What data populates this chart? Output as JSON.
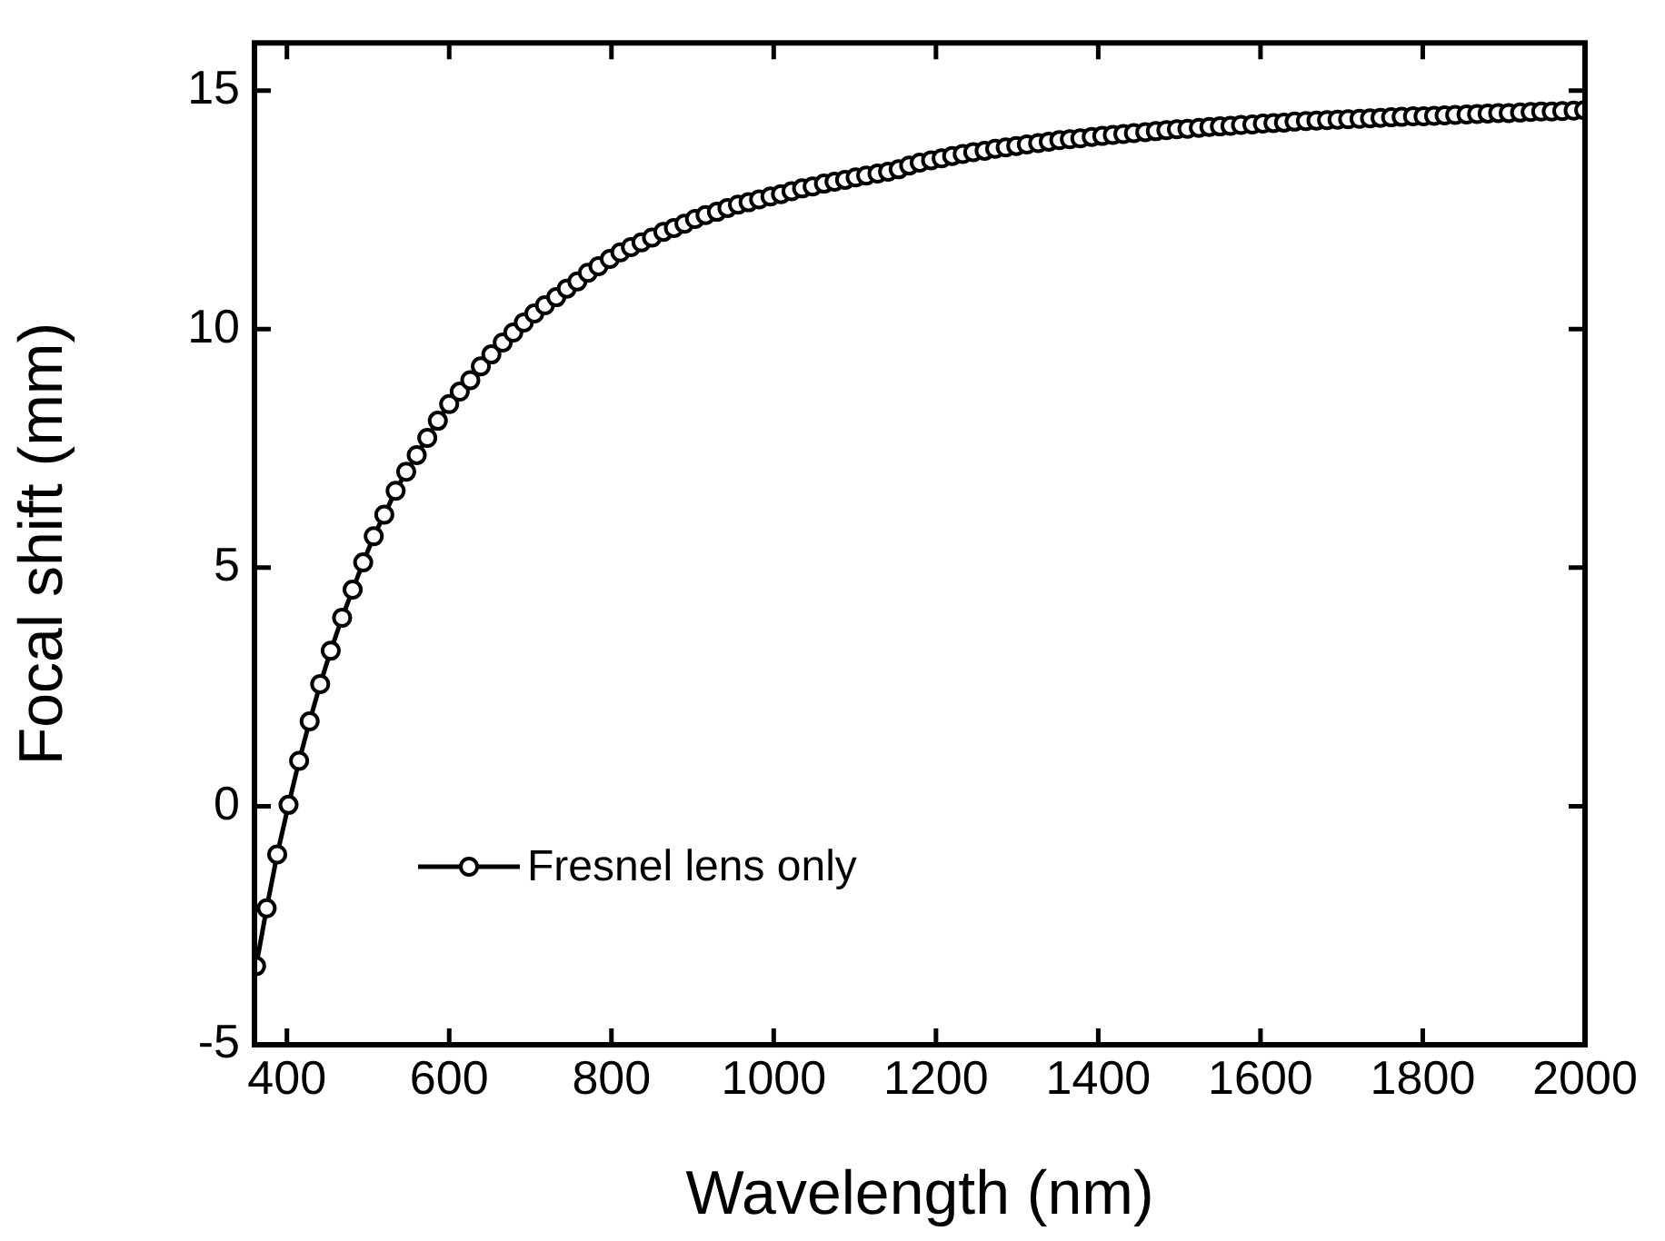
{
  "chart_data": {
    "type": "line",
    "xlabel": "Wavelength (nm)",
    "ylabel": "Focal shift (mm)",
    "xlim": [
      360,
      2000
    ],
    "xticks": [
      400,
      600,
      800,
      1000,
      1200,
      1400,
      1600,
      1800,
      2000
    ],
    "ylim": [
      -5,
      16
    ],
    "yticks": [
      -5,
      0,
      5,
      10,
      15
    ],
    "grid": false,
    "legend": "bottom left",
    "marker": "circle",
    "line_style": "solid",
    "series": [
      {
        "name": "Fresnel lens only",
        "color": "#000000",
        "x": [
          362,
          375,
          388,
          402,
          415,
          428,
          441,
          454,
          468,
          481,
          494,
          507,
          520,
          534,
          547,
          560,
          573,
          586,
          600,
          613,
          626,
          639,
          652,
          666,
          679,
          692,
          705,
          718,
          732,
          745,
          758,
          771,
          784,
          798,
          811,
          824,
          837,
          850,
          864,
          877,
          890,
          903,
          916,
          930,
          943,
          956,
          969,
          982,
          996,
          1009,
          1022,
          1035,
          1048,
          1062,
          1075,
          1088,
          1101,
          1114,
          1128,
          1141,
          1154,
          1167,
          1180,
          1194,
          1207,
          1220,
          1233,
          1246,
          1260,
          1273,
          1286,
          1299,
          1312,
          1326,
          1339,
          1352,
          1365,
          1378,
          1392,
          1405,
          1418,
          1431,
          1444,
          1458,
          1471,
          1484,
          1497,
          1510,
          1524,
          1537,
          1550,
          1563,
          1576,
          1590,
          1603,
          1616,
          1629,
          1642,
          1656,
          1669,
          1682,
          1695,
          1708,
          1722,
          1735,
          1748,
          1761,
          1774,
          1788,
          1801,
          1814,
          1827,
          1840,
          1854,
          1867,
          1880,
          1893,
          1906,
          1920,
          1933,
          1946,
          1959,
          1972,
          1986,
          1999
        ],
        "values": [
          -3.35,
          -2.14,
          -1.01,
          0.03,
          0.95,
          1.78,
          2.56,
          3.26,
          3.95,
          4.54,
          5.11,
          5.66,
          6.11,
          6.61,
          7.01,
          7.36,
          7.72,
          8.08,
          8.43,
          8.69,
          8.93,
          9.22,
          9.47,
          9.72,
          9.93,
          10.14,
          10.33,
          10.5,
          10.67,
          10.85,
          11.0,
          11.18,
          11.32,
          11.47,
          11.61,
          11.72,
          11.82,
          11.92,
          12.04,
          12.12,
          12.21,
          12.31,
          12.39,
          12.46,
          12.54,
          12.61,
          12.66,
          12.72,
          12.78,
          12.83,
          12.89,
          12.95,
          12.99,
          13.05,
          13.09,
          13.13,
          13.18,
          13.22,
          13.26,
          13.3,
          13.35,
          13.43,
          13.49,
          13.54,
          13.58,
          13.63,
          13.67,
          13.71,
          13.74,
          13.78,
          13.81,
          13.84,
          13.87,
          13.9,
          13.93,
          13.96,
          13.98,
          14.0,
          14.03,
          14.05,
          14.07,
          14.09,
          14.11,
          14.13,
          14.15,
          14.17,
          14.19,
          14.2,
          14.22,
          14.24,
          14.25,
          14.26,
          14.28,
          14.29,
          14.31,
          14.32,
          14.33,
          14.35,
          14.36,
          14.37,
          14.38,
          14.39,
          14.4,
          14.41,
          14.42,
          14.43,
          14.44,
          14.45,
          14.46,
          14.46,
          14.47,
          14.48,
          14.49,
          14.5,
          14.51,
          14.52,
          14.53,
          14.53,
          14.54,
          14.55,
          14.56,
          14.56,
          14.57,
          14.58,
          14.59
        ]
      }
    ]
  }
}
